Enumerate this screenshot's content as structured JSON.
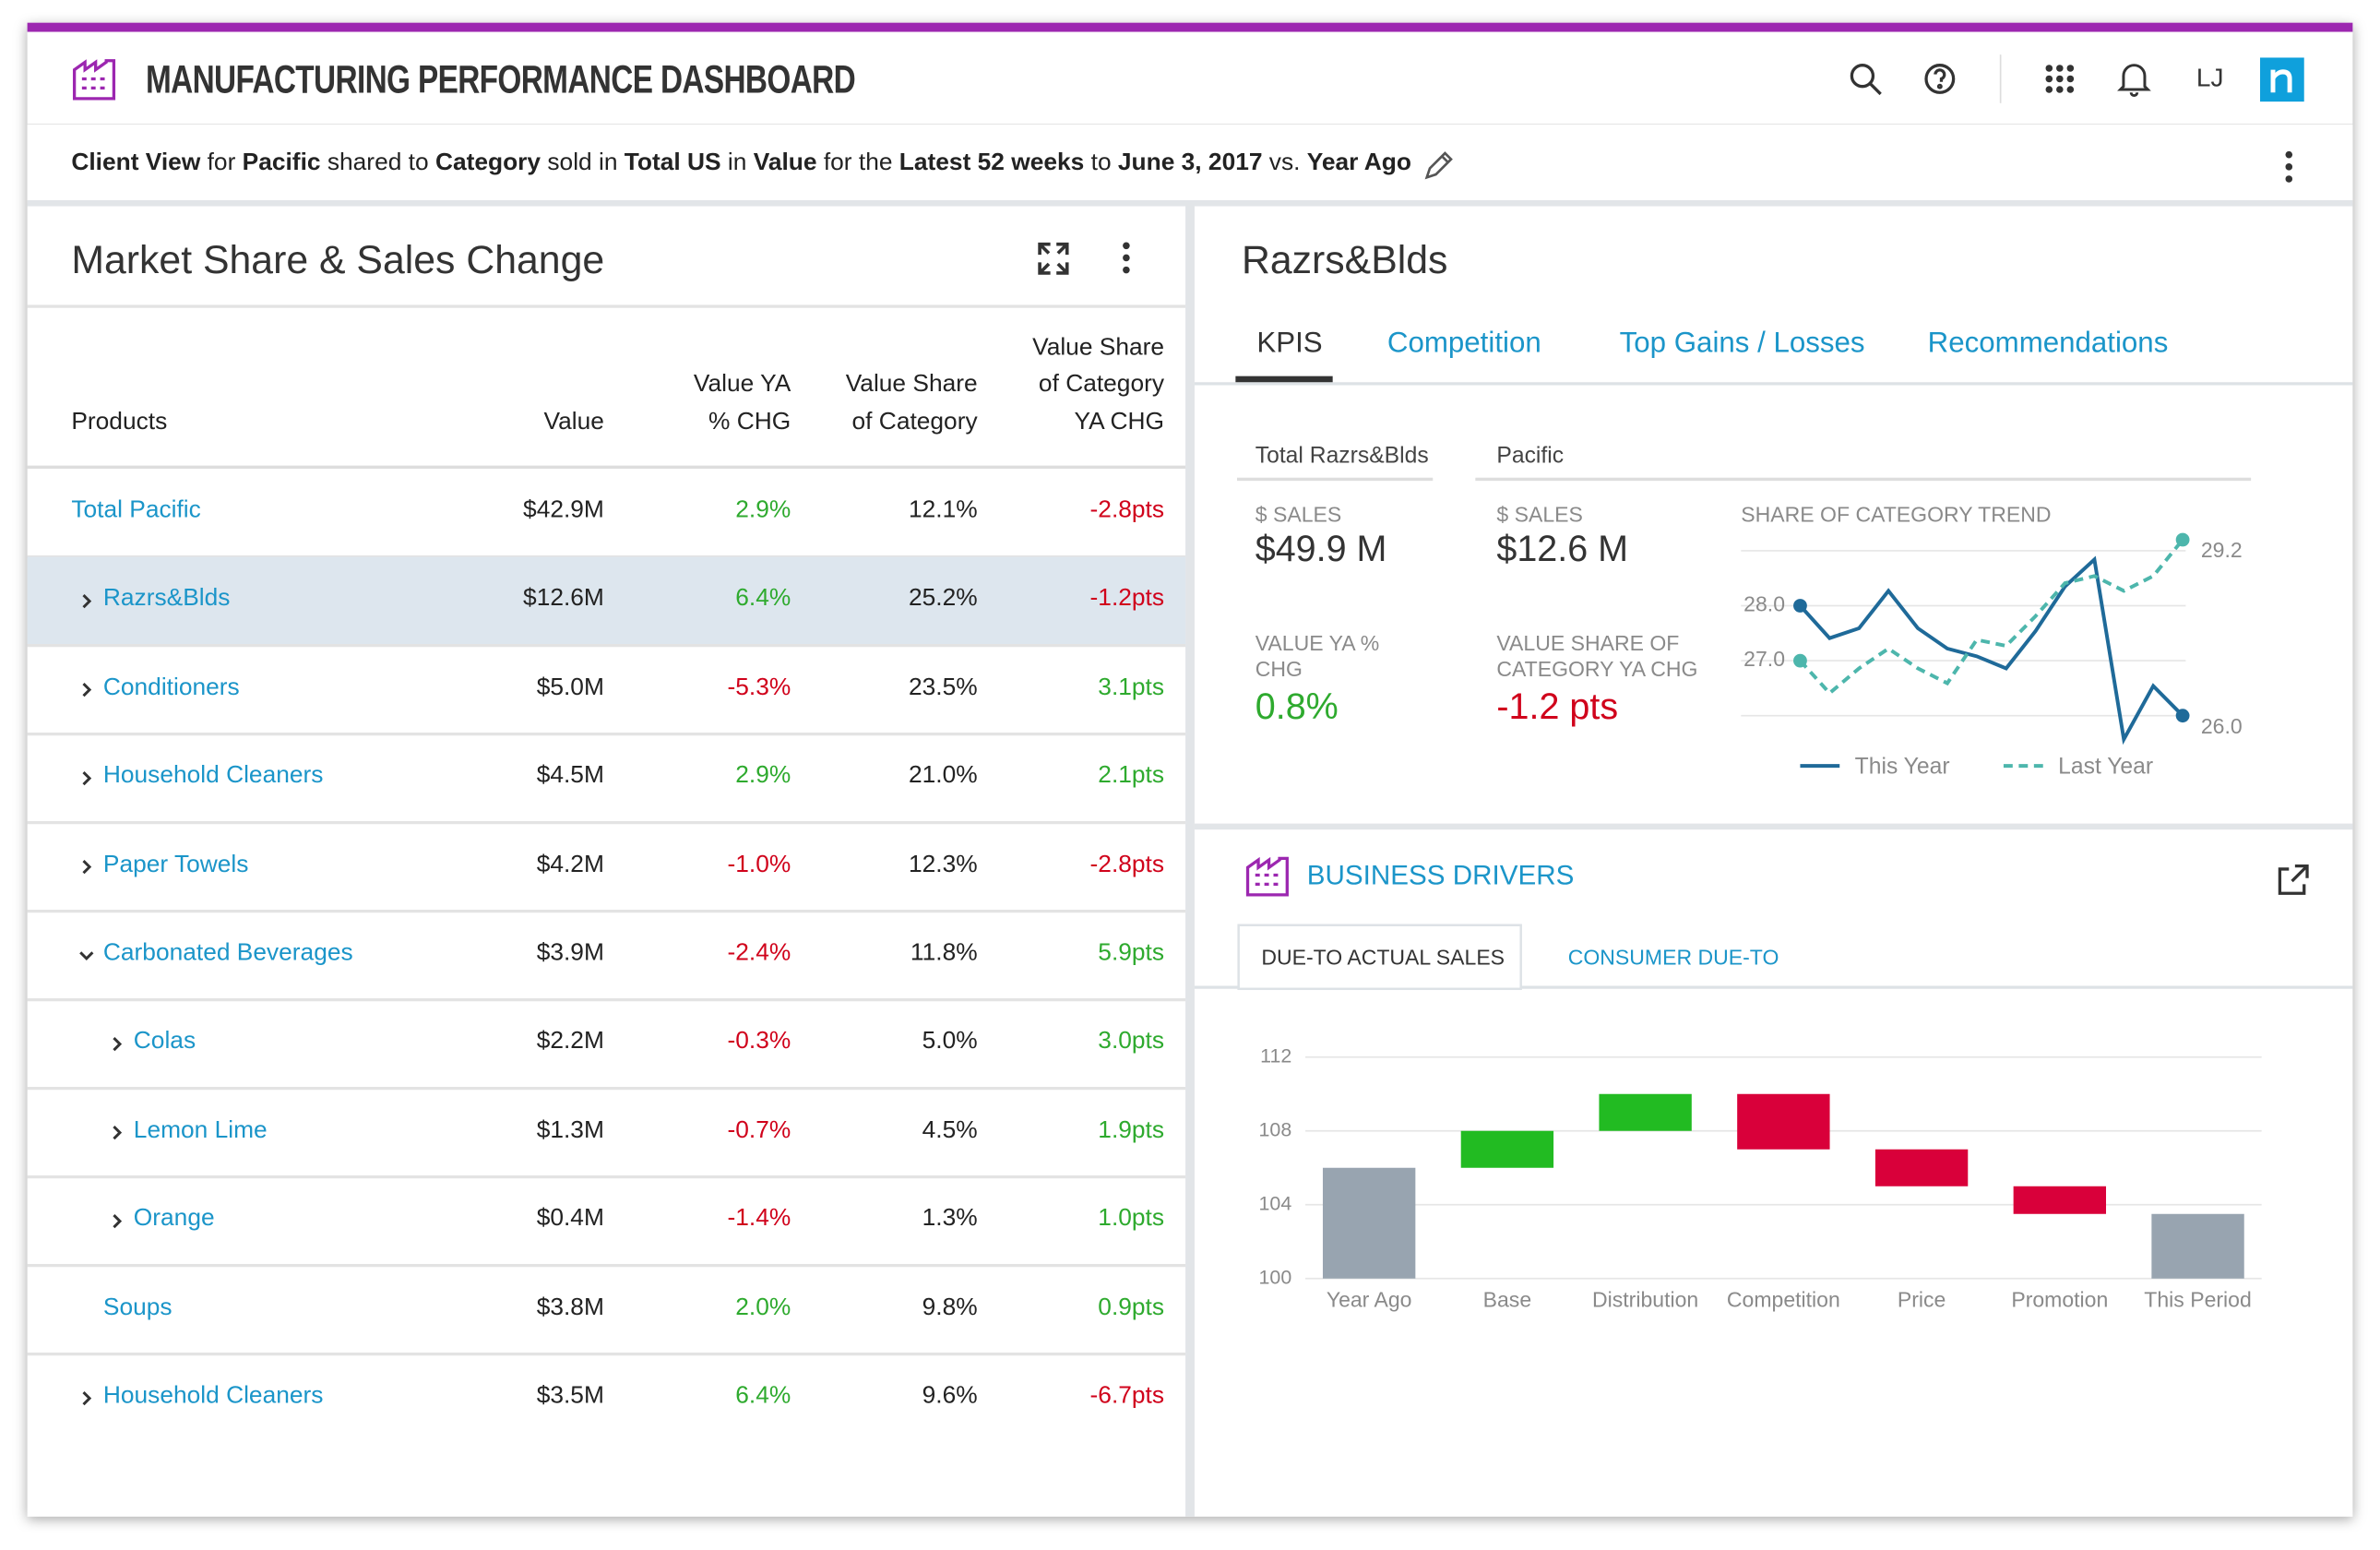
{
  "header": {
    "title": "MANUFACTURING PERFORMANCE DASHBOARD",
    "user": "LJ"
  },
  "filter": [
    {
      "text": "Client View",
      "bold": true
    },
    {
      "text": " for "
    },
    {
      "text": "Pacific",
      "bold": true
    },
    {
      "text": " shared to "
    },
    {
      "text": "Category",
      "bold": true
    },
    {
      "text": " sold in "
    },
    {
      "text": "Total US",
      "bold": true
    },
    {
      "text": " in "
    },
    {
      "text": "Value",
      "bold": true
    },
    {
      "text": " for the "
    },
    {
      "text": "Latest 52 weeks",
      "bold": true
    },
    {
      "text": " to "
    },
    {
      "text": "June 3, 2017",
      "bold": true
    },
    {
      "text": " vs. "
    },
    {
      "text": "Year Ago",
      "bold": true
    }
  ],
  "market_share": {
    "title": "Market Share & Sales Change",
    "columns": [
      "Products",
      "Value",
      "Value YA\n% CHG",
      "Value Share\nof Category",
      "Value Share\nof Category\nYA CHG"
    ],
    "rows": [
      {
        "name": "Total Pacific",
        "level": 0,
        "cells": [
          "$42.9M",
          "2.9%",
          "12.1%",
          "-2.8pts"
        ]
      },
      {
        "name": "Razrs&Blds",
        "level": 1,
        "expander": "collapsed",
        "selected": true,
        "cells": [
          "$12.6M",
          "6.4%",
          "25.2%",
          "-1.2pts"
        ]
      },
      {
        "name": "Conditioners",
        "level": 1,
        "expander": "collapsed",
        "cells": [
          "$5.0M",
          "-5.3%",
          "23.5%",
          "3.1pts"
        ]
      },
      {
        "name": "Household Cleaners",
        "level": 1,
        "expander": "collapsed",
        "cells": [
          "$4.5M",
          "2.9%",
          "21.0%",
          "2.1pts"
        ]
      },
      {
        "name": "Paper Towels",
        "level": 1,
        "expander": "collapsed",
        "cells": [
          "$4.2M",
          "-1.0%",
          "12.3%",
          "-2.8pts"
        ]
      },
      {
        "name": "Carbonated Beverages",
        "level": 1,
        "expander": "expanded",
        "cells": [
          "$3.9M",
          "-2.4%",
          "11.8%",
          "5.9pts"
        ]
      },
      {
        "name": "Colas",
        "level": 2,
        "expander": "collapsed",
        "cells": [
          "$2.2M",
          "-0.3%",
          "5.0%",
          "3.0pts"
        ]
      },
      {
        "name": "Lemon Lime",
        "level": 2,
        "expander": "collapsed",
        "cells": [
          "$1.3M",
          "-0.7%",
          "4.5%",
          "1.9pts"
        ]
      },
      {
        "name": "Orange",
        "level": 2,
        "expander": "collapsed",
        "cells": [
          "$0.4M",
          "-1.4%",
          "1.3%",
          "1.0pts"
        ]
      },
      {
        "name": "Soups",
        "level": 1,
        "cells": [
          "$3.8M",
          "2.0%",
          "9.8%",
          "0.9pts"
        ]
      },
      {
        "name": "Household Cleaners",
        "level": 1,
        "expander": "collapsed",
        "cells": [
          "$3.5M",
          "6.4%",
          "9.6%",
          "-6.7pts"
        ]
      }
    ]
  },
  "detail": {
    "title": "Razrs&Blds",
    "tabs": [
      "KPIS",
      "Competition",
      "Top Gains / Losses",
      "Recommendations"
    ],
    "active_tab": 0,
    "kpi_columns": [
      {
        "heading": "Total Razrs&Blds",
        "metrics": [
          {
            "label": "$ SALES",
            "value": "$49.9 M"
          },
          {
            "label": "VALUE YA % CHG",
            "value": "0.8%",
            "tone": "positive"
          }
        ]
      },
      {
        "heading": "Pacific",
        "metrics": [
          {
            "label": "$ SALES",
            "value": "$12.6 M"
          },
          {
            "label": "VALUE SHARE OF CATEGORY YA CHG",
            "value": "-1.2 pts",
            "tone": "negative"
          }
        ]
      }
    ]
  },
  "chart_data": [
    {
      "type": "line",
      "title": "SHARE OF CATEGORY TREND",
      "categories": [
        null,
        null,
        null,
        null,
        null,
        null,
        null,
        null,
        null,
        null,
        null,
        null,
        null,
        null
      ],
      "series": [
        {
          "name": "This Year",
          "color": "#1f6a99",
          "dashed": false,
          "values": [
            28.0,
            27.41,
            27.59,
            28.27,
            27.59,
            27.22,
            27.08,
            26.86,
            27.54,
            28.35,
            28.84,
            25.57,
            26.54,
            26.0
          ],
          "value_labels": [
            "28.0",
            null,
            null,
            null,
            null,
            null,
            null,
            null,
            null,
            null,
            null,
            null,
            null,
            "26.0"
          ]
        },
        {
          "name": "Last Year",
          "color": "#4db6ac",
          "dashed": true,
          "values": [
            27.0,
            26.41,
            26.86,
            27.22,
            26.86,
            26.59,
            27.38,
            27.27,
            27.81,
            28.41,
            28.54,
            28.27,
            28.54,
            29.2
          ],
          "value_labels": [
            "27.0",
            null,
            null,
            null,
            null,
            null,
            null,
            null,
            null,
            null,
            null,
            null,
            null,
            "29.2"
          ]
        }
      ],
      "ylim": [
        25.5,
        29.5
      ],
      "yticks": [
        26,
        27,
        28,
        29
      ],
      "tick_labels": false,
      "grid": true,
      "legend": "bottom"
    },
    {
      "type": "waterfall",
      "title": "BUSINESS DRIVERS",
      "tabs": [
        "DUE-TO ACTUAL SALES",
        "CONSUMER DUE-TO"
      ],
      "active_tab": 0,
      "categories": [
        "Year Ago",
        "Base",
        "Distribution",
        "Competition",
        "Price",
        "Promotion",
        "This Period"
      ],
      "values": [
        106,
        2,
        2,
        -3,
        -2,
        -1.5,
        103.5
      ],
      "totals": [
        true,
        false,
        false,
        false,
        false,
        false,
        true
      ],
      "colors": {
        "total": "#98a4b0",
        "increase": "#22bb22",
        "decrease": "#d9003a"
      },
      "ylim": [
        100,
        112
      ],
      "yticks": [
        100,
        104,
        108,
        112
      ],
      "grid": true
    }
  ]
}
